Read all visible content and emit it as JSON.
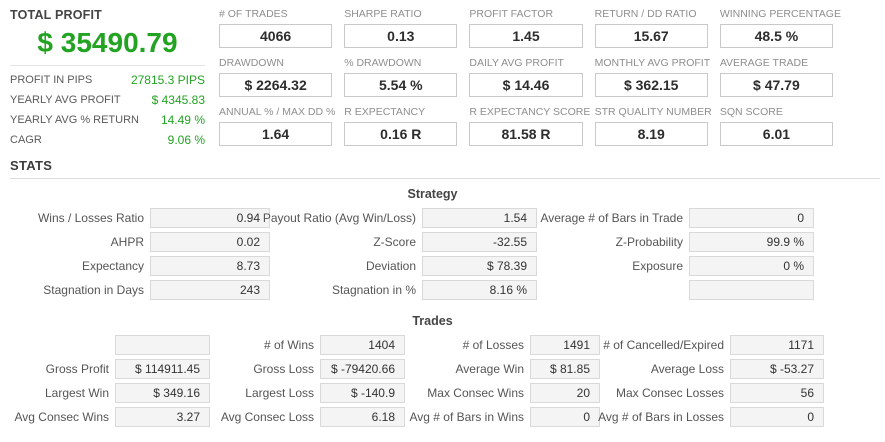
{
  "colors": {
    "profit_green": "#22a322"
  },
  "summary": {
    "title": "TOTAL PROFIT",
    "total_profit": "$ 35490.79",
    "rows": [
      {
        "label": "PROFIT IN PIPS",
        "value": "27815.3 PIPS"
      },
      {
        "label": "YEARLY AVG PROFIT",
        "value": "$ 4345.83"
      },
      {
        "label": "YEARLY AVG % RETURN",
        "value": "14.49 %"
      },
      {
        "label": "CAGR",
        "value": "9.06 %"
      }
    ]
  },
  "metrics": [
    [
      {
        "label": "# OF TRADES",
        "value": "4066"
      },
      {
        "label": "SHARPE RATIO",
        "value": "0.13"
      },
      {
        "label": "PROFIT FACTOR",
        "value": "1.45"
      },
      {
        "label": "RETURN / DD RATIO",
        "value": "15.67"
      },
      {
        "label": "WINNING PERCENTAGE",
        "value": "48.5 %"
      }
    ],
    [
      {
        "label": "DRAWDOWN",
        "value": "$ 2264.32"
      },
      {
        "label": "% DRAWDOWN",
        "value": "5.54 %"
      },
      {
        "label": "DAILY AVG PROFIT",
        "value": "$ 14.46"
      },
      {
        "label": "MONTHLY AVG PROFIT",
        "value": "$ 362.15"
      },
      {
        "label": "AVERAGE TRADE",
        "value": "$ 47.79"
      }
    ],
    [
      {
        "label": "ANNUAL % / MAX DD %",
        "value": "1.64"
      },
      {
        "label": "R EXPECTANCY",
        "value": "0.16 R"
      },
      {
        "label": "R EXPECTANCY SCORE",
        "value": "81.58 R"
      },
      {
        "label": "STR QUALITY NUMBER",
        "value": "8.19"
      },
      {
        "label": "SQN SCORE",
        "value": "6.01"
      }
    ]
  ],
  "stats": {
    "title": "STATS",
    "sections": [
      {
        "title": "Strategy",
        "rows": [
          [
            {
              "label": "Wins / Losses Ratio",
              "value": "0.94"
            },
            {
              "label": "Payout Ratio (Avg Win/Loss)",
              "value": "1.54"
            },
            {
              "label": "Average # of Bars in Trade",
              "value": "0"
            }
          ],
          [
            {
              "label": "AHPR",
              "value": "0.02"
            },
            {
              "label": "Z-Score",
              "value": "-32.55"
            },
            {
              "label": "Z-Probability",
              "value": "99.9 %"
            }
          ],
          [
            {
              "label": "Expectancy",
              "value": "8.73"
            },
            {
              "label": "Deviation",
              "value": "$ 78.39"
            },
            {
              "label": "Exposure",
              "value": "0 %"
            }
          ],
          [
            {
              "label": "Stagnation in Days",
              "value": "243"
            },
            {
              "label": "Stagnation in %",
              "value": "8.16 %"
            },
            {
              "label": "",
              "value": ""
            }
          ]
        ]
      },
      {
        "title": "Trades",
        "rows": [
          [
            {
              "label": "",
              "value": ""
            },
            {
              "label": "# of Wins",
              "value": "1404"
            },
            {
              "label": "# of Losses",
              "value": "1491"
            },
            {
              "label": "# of Cancelled/Expired",
              "value": "1171"
            }
          ],
          [
            {
              "label": "Gross Profit",
              "value": "$ 114911.45"
            },
            {
              "label": "Gross Loss",
              "value": "$ -79420.66"
            },
            {
              "label": "Average Win",
              "value": "$ 81.85"
            },
            {
              "label": "Average Loss",
              "value": "$ -53.27"
            }
          ],
          [
            {
              "label": "Largest Win",
              "value": "$ 349.16"
            },
            {
              "label": "Largest Loss",
              "value": "$ -140.9"
            },
            {
              "label": "Max Consec Wins",
              "value": "20"
            },
            {
              "label": "Max Consec Losses",
              "value": "56"
            }
          ],
          [
            {
              "label": "Avg Consec Wins",
              "value": "3.27"
            },
            {
              "label": "Avg Consec Loss",
              "value": "6.18"
            },
            {
              "label": "Avg # of Bars in Wins",
              "value": "0"
            },
            {
              "label": "Avg # of Bars in Losses",
              "value": "0"
            }
          ]
        ]
      }
    ]
  }
}
